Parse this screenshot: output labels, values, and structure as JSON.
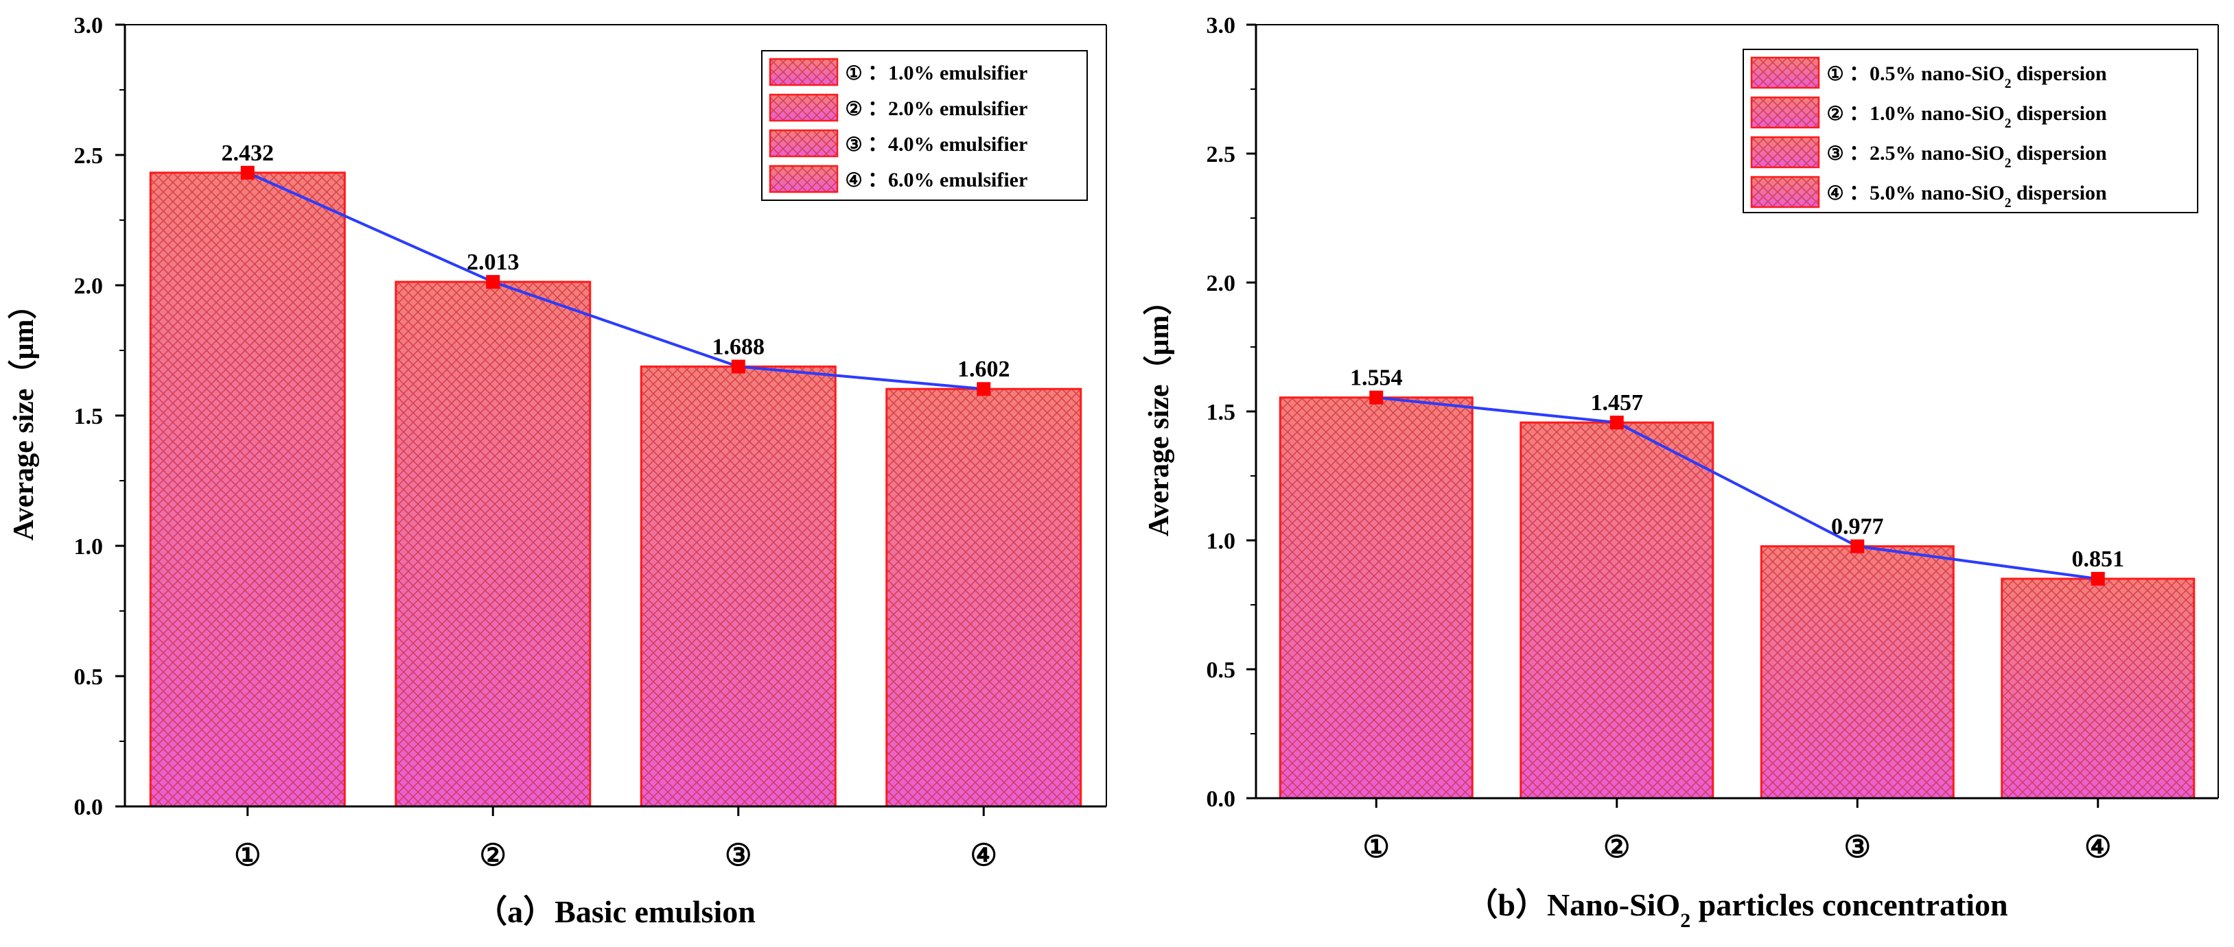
{
  "colors": {
    "bar_fill_top": "#f47e78",
    "bar_fill_bottom": "#e85fd6",
    "bar_stroke": "#ff1a1a",
    "hatch": "#d0303c",
    "line": "#2b3cff",
    "marker": "#ff0000"
  },
  "chart_data": [
    {
      "type": "bar",
      "title": "（a）Basic emulsion",
      "xlabel": "",
      "ylabel": "Average size（μm）",
      "ylim": [
        0,
        3.0
      ],
      "yticks": [
        "0.0",
        "0.5",
        "1.0",
        "1.5",
        "2.0",
        "2.5",
        "3.0"
      ],
      "yticks_values": [
        0,
        0.5,
        1.0,
        1.5,
        2.0,
        2.5,
        3.0
      ],
      "categories": [
        "①",
        "②",
        "③",
        "④"
      ],
      "values": [
        2.432,
        2.013,
        1.688,
        1.602
      ],
      "value_labels": [
        "2.432",
        "2.013",
        "1.688",
        "1.602"
      ],
      "legend_position": "top-right",
      "legend": [
        {
          "marker": "①",
          "text": "：1.0% emulsifier"
        },
        {
          "marker": "②",
          "text": "：2.0% emulsifier"
        },
        {
          "marker": "③",
          "text": "：4.0% emulsifier"
        },
        {
          "marker": "④",
          "text": "：6.0% emulsifier"
        }
      ],
      "overlay_line": true
    },
    {
      "type": "bar",
      "title": "（b）Nano-SiO₂ particles concentration",
      "title_parts": {
        "pre": "（b）Nano-SiO",
        "sub": "2",
        "post": " particles concentration"
      },
      "xlabel": "",
      "ylabel": "Average size（μm）",
      "ylim": [
        0,
        3.0
      ],
      "yticks": [
        "0.0",
        "0.5",
        "1.0",
        "1.5",
        "2.0",
        "2.5",
        "3.0"
      ],
      "yticks_values": [
        0,
        0.5,
        1.0,
        1.5,
        2.0,
        2.5,
        3.0
      ],
      "categories": [
        "①",
        "②",
        "③",
        "④"
      ],
      "values": [
        1.554,
        1.457,
        0.977,
        0.851
      ],
      "value_labels": [
        "1.554",
        "1.457",
        "0.977",
        "0.851"
      ],
      "legend_position": "top-right",
      "legend": [
        {
          "marker": "①",
          "text": "：0.5% nano-SiO₂ dispersion",
          "pre": "：0.5% nano-SiO",
          "sub": "2",
          "post": " dispersion"
        },
        {
          "marker": "②",
          "text": "：1.0% nano-SiO₂ dispersion",
          "pre": "：1.0% nano-SiO",
          "sub": "2",
          "post": " dispersion"
        },
        {
          "marker": "③",
          "text": "：2.5% nano-SiO₂ dispersion",
          "pre": "：2.5% nano-SiO",
          "sub": "2",
          "post": " dispersion"
        },
        {
          "marker": "④",
          "text": "：5.0% nano-SiO₂ dispersion",
          "pre": "：5.0% nano-SiO",
          "sub": "2",
          "post": " dispersion"
        }
      ],
      "overlay_line": true
    }
  ]
}
